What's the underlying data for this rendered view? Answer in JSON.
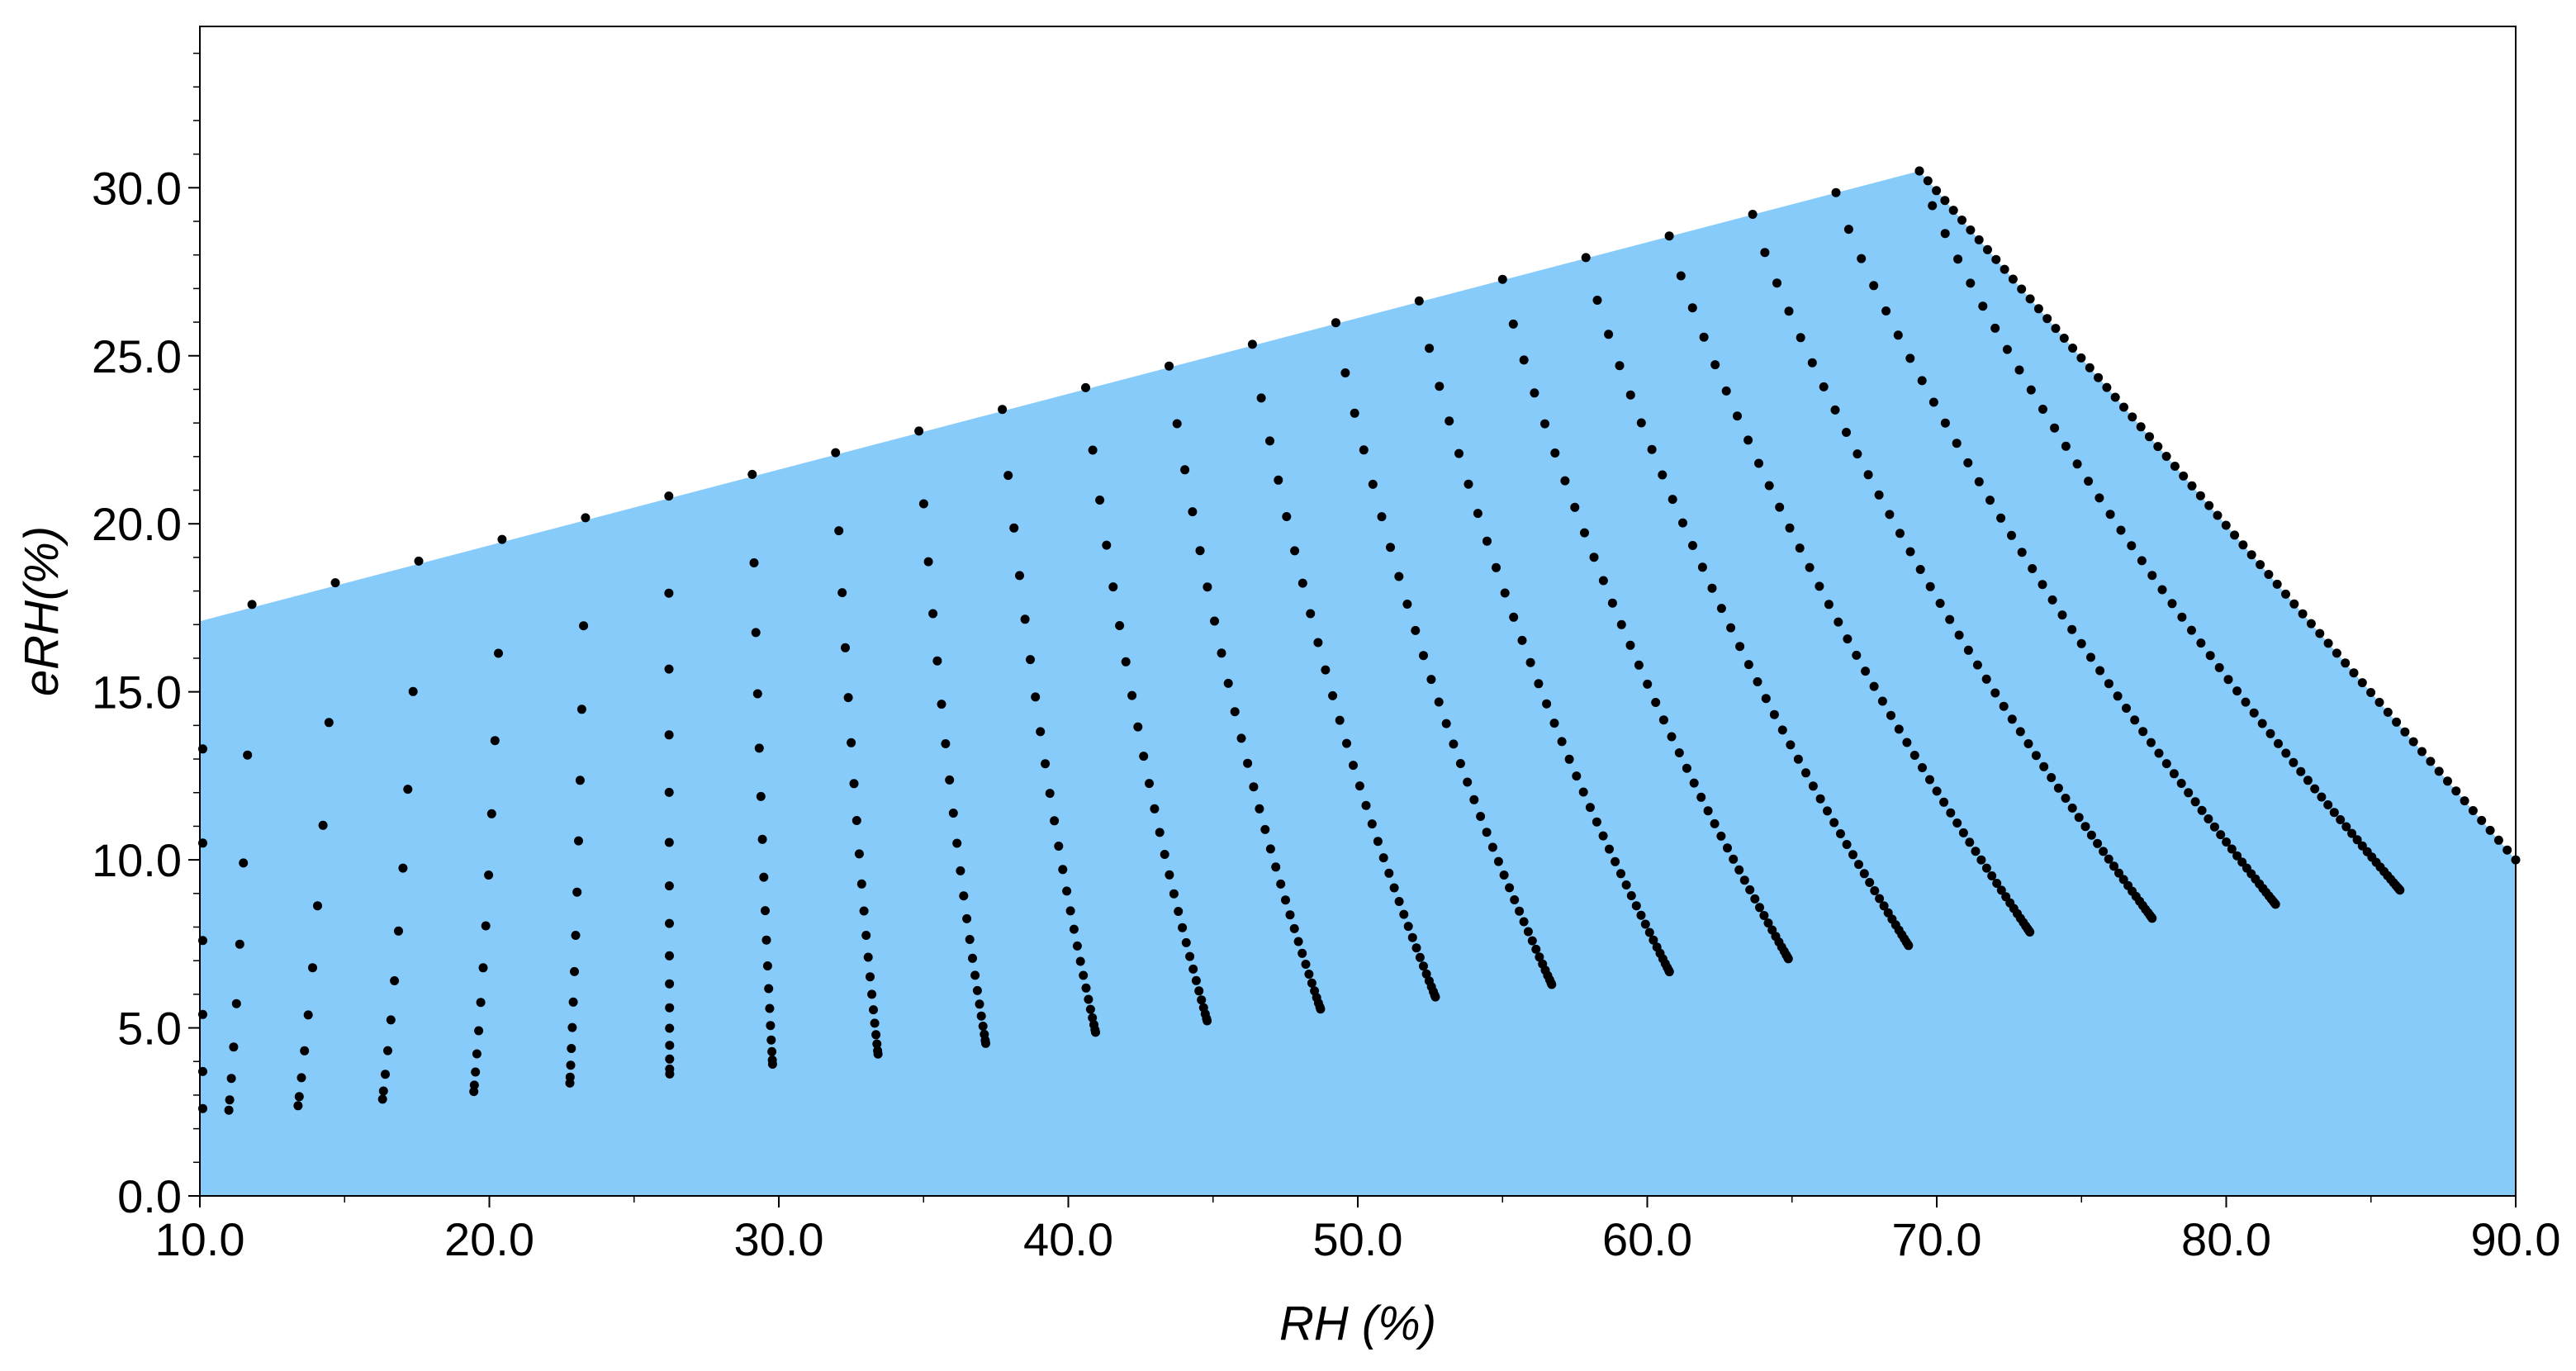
{
  "chart_data": {
    "type": "scatter",
    "xlabel": "RH (%)",
    "ylabel": "eRH(%)",
    "xlim": [
      10,
      90
    ],
    "ylim": [
      0,
      34.8
    ],
    "xticks": [
      "10.0",
      "20.0",
      "30.0",
      "40.0",
      "50.0",
      "60.0",
      "70.0",
      "80.0",
      "90.0"
    ],
    "yticks": [
      "0.0",
      "5.0",
      "10.0",
      "15.0",
      "20.0",
      "25.0",
      "30.0"
    ],
    "grid": false,
    "legend": "none",
    "region": {
      "color": "#87CBFB",
      "boundary": [
        [
          10,
          0
        ],
        [
          10,
          17.1
        ],
        [
          69.4,
          30.5
        ],
        [
          90,
          10
        ],
        [
          90,
          0
        ]
      ]
    },
    "point_color": "#000000",
    "family": {
      "description_of_generation": "",
      "upper_start": [
        11.8,
        17.6
      ],
      "upper_end": [
        69.4,
        30.5
      ],
      "start_min": [
        10.0,
        2.6
      ],
      "start_max": [
        11.0,
        2.5
      ],
      "line_count": 21,
      "points_per_line_min": 9,
      "points_per_line_max": 60
    },
    "series": [
      {
        "name": "",
        "x": [
          11.8,
          15.6,
          19.3,
          22.7,
          25.9,
          28.9,
          31.7,
          34.4,
          36.9,
          39.3,
          41.6,
          43.8
        ],
        "y": [
          17.6,
          16.9,
          16.0,
          15.0,
          13.9,
          12.8,
          11.6,
          10.5,
          9.3,
          8.3,
          7.3,
          6.5
        ]
      },
      {
        "name": "",
        "x": [
          56.6,
          58.4,
          60.1,
          61.8,
          63.4,
          65.0,
          66.5,
          68.0,
          69.4,
          70.8,
          72.1,
          73.4,
          74.7,
          75.9,
          77.1,
          78.2,
          79.3,
          80.4,
          81.4
        ],
        "y": [
          27.8,
          26.7,
          25.6,
          24.6,
          23.6,
          22.6,
          21.6,
          20.6,
          19.6,
          18.7,
          17.8,
          16.9,
          16.0,
          15.1,
          14.2,
          13.3,
          12.4,
          11.6,
          10.8
        ]
      }
    ]
  }
}
